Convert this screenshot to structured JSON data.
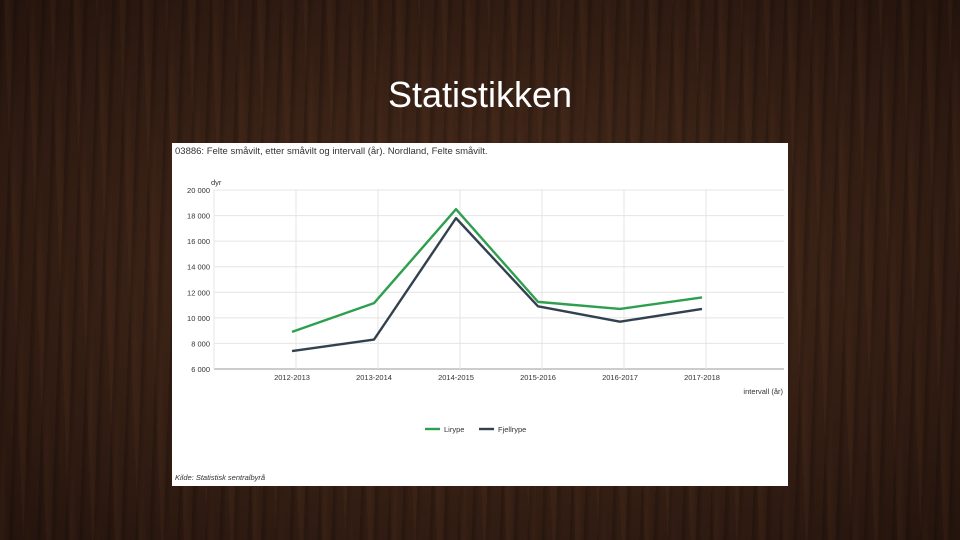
{
  "slide": {
    "title": "Statistikken"
  },
  "chart_data": {
    "type": "line",
    "title": "03886: Felte småvilt, etter småvilt og intervall (år). Nordland, Felte småvilt.",
    "ylabel": "dyr",
    "xlabel": "intervall (år)",
    "ylim": [
      6000,
      20000
    ],
    "yticks": [
      6000,
      8000,
      10000,
      12000,
      14000,
      16000,
      18000,
      20000
    ],
    "ytick_labels": [
      "6 000",
      "8 000",
      "10 000",
      "12 000",
      "14 000",
      "16 000",
      "18 000",
      "20 000"
    ],
    "categories": [
      "2012-2013",
      "2013-2014",
      "2014-2015",
      "2015-2016",
      "2016-2017",
      "2017-2018"
    ],
    "series": [
      {
        "name": "Lirype",
        "color": "#2e9e4f",
        "values": [
          8900,
          11150,
          18500,
          11250,
          10700,
          11600
        ]
      },
      {
        "name": "Fjellrype",
        "color": "#33414e",
        "values": [
          7400,
          8300,
          17800,
          10900,
          9700,
          10700
        ]
      }
    ],
    "grid": true,
    "legend_position": "bottom-center",
    "source": "Kilde: Statistisk sentralbyrå"
  }
}
